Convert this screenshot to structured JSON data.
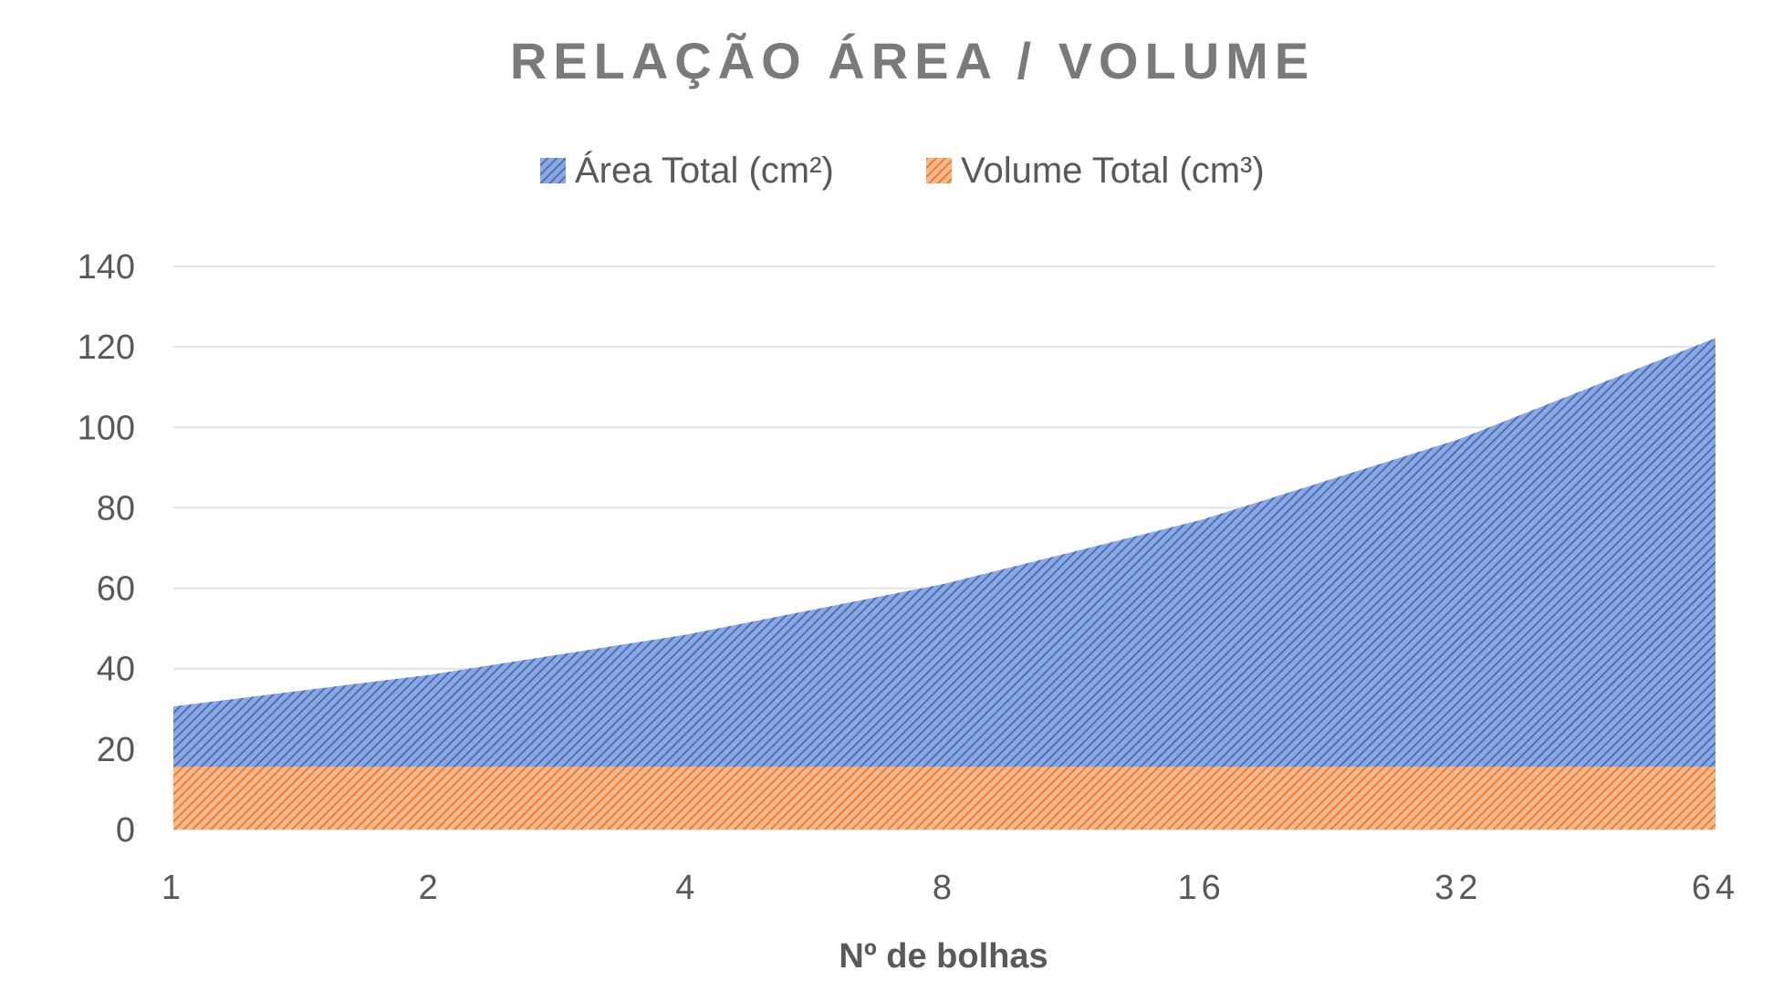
{
  "chart_data": {
    "type": "area",
    "title": "RELAÇÃO ÁREA / VOLUME",
    "xlabel": "Nº de bolhas",
    "ylabel": "",
    "categories": [
      "1",
      "2",
      "4",
      "8",
      "16",
      "32",
      "64"
    ],
    "ylim": [
      0,
      140
    ],
    "yticks": [
      "0",
      "20",
      "40",
      "60",
      "80",
      "100",
      "120",
      "140"
    ],
    "grid": true,
    "legend_position": "top",
    "series": [
      {
        "name": "Área Total (cm²)",
        "values": [
          30.6,
          38.5,
          48.5,
          61.1,
          77.0,
          97.0,
          122.2
        ],
        "color": "#4472c4"
      },
      {
        "name": "Volume Total (cm³)",
        "values": [
          15.6,
          15.6,
          15.6,
          15.6,
          15.6,
          15.6,
          15.6
        ],
        "color": "#ed7d31"
      }
    ]
  }
}
